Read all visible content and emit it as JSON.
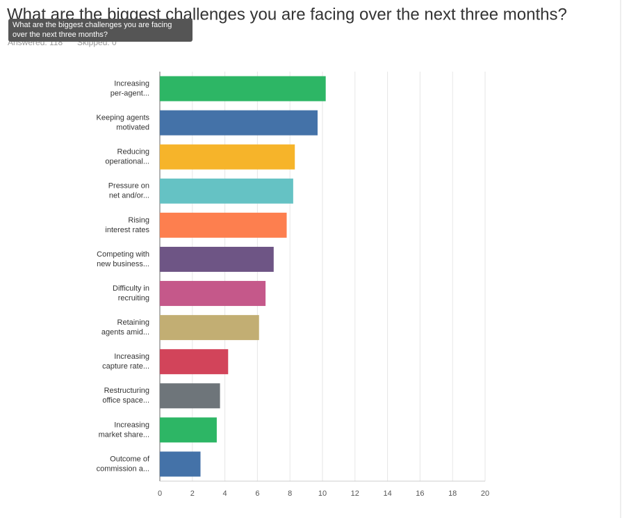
{
  "chart_data": {
    "type": "bar",
    "orientation": "horizontal",
    "title": "What are the biggest challenges you are facing over the next three months?",
    "tooltip": [
      "What are the biggest challenges you are facing",
      "over the next three months?"
    ],
    "answered": "Answered: 118",
    "skipped": "Skipped: 0",
    "categories": [
      [
        "Increasing",
        "per-agent..."
      ],
      [
        "Keeping agents",
        "motivated"
      ],
      [
        "Reducing",
        "operational..."
      ],
      [
        "Pressure on",
        "net and/or..."
      ],
      [
        "Rising",
        "interest rates"
      ],
      [
        "Competing with",
        "new business..."
      ],
      [
        "Difficulty in",
        "recruiting"
      ],
      [
        "Retaining",
        "agents amid..."
      ],
      [
        "Increasing",
        "capture rate..."
      ],
      [
        "Restructuring",
        "office space..."
      ],
      [
        "Increasing",
        "market share..."
      ],
      [
        "Outcome of",
        "commission a..."
      ]
    ],
    "values": [
      10.2,
      9.7,
      8.3,
      8.2,
      7.8,
      7.0,
      6.5,
      6.1,
      4.2,
      3.7,
      3.5,
      2.5
    ],
    "colors": [
      "#2db665",
      "#4472a8",
      "#f6b42a",
      "#65c2c4",
      "#fd7f4f",
      "#6e5585",
      "#c5588a",
      "#c2ae73",
      "#d2445a",
      "#6e757a",
      "#2db665",
      "#4472a8"
    ],
    "xlim": [
      0,
      20
    ],
    "xticks": [
      0,
      2,
      4,
      6,
      8,
      10,
      12,
      14,
      16,
      18,
      20
    ],
    "grid": true
  }
}
